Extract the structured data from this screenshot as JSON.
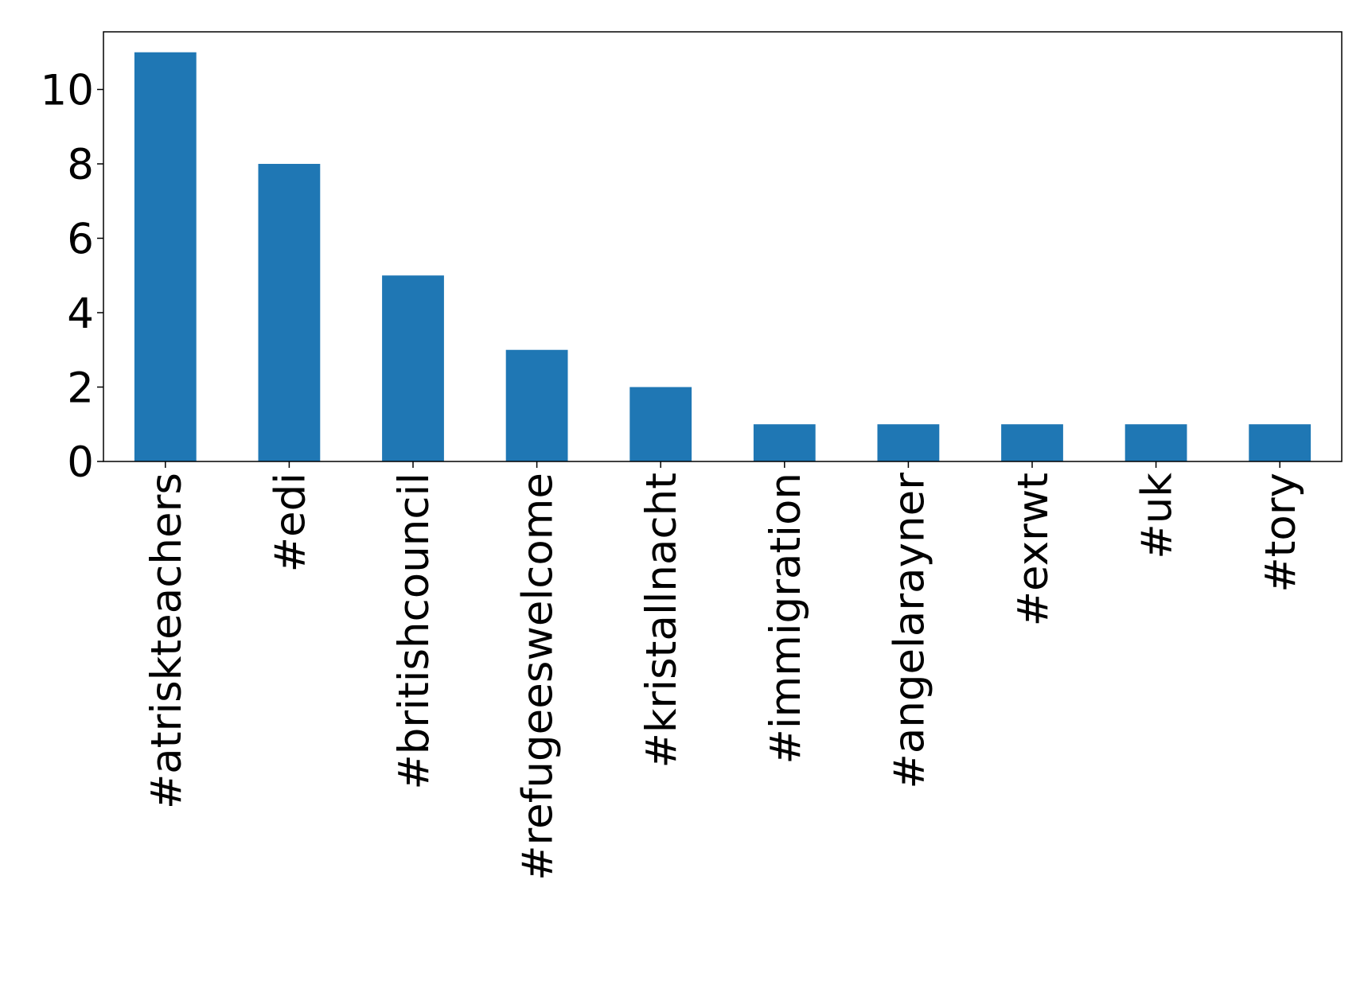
{
  "chart_data": {
    "type": "bar",
    "categories": [
      "#atriskteachers",
      "#edi",
      "#britishcouncil",
      "#refugeeswelcome",
      "#kristallnacht",
      "#immigration",
      "#angelarayner",
      "#exrwt",
      "#uk",
      "#tory"
    ],
    "values": [
      11,
      8,
      5,
      3,
      2,
      1,
      1,
      1,
      1,
      1
    ],
    "color": "#1f77b4",
    "ylim": [
      0,
      11.55
    ],
    "yticks": [
      0,
      2,
      4,
      6,
      8,
      10
    ],
    "grid": false
  }
}
